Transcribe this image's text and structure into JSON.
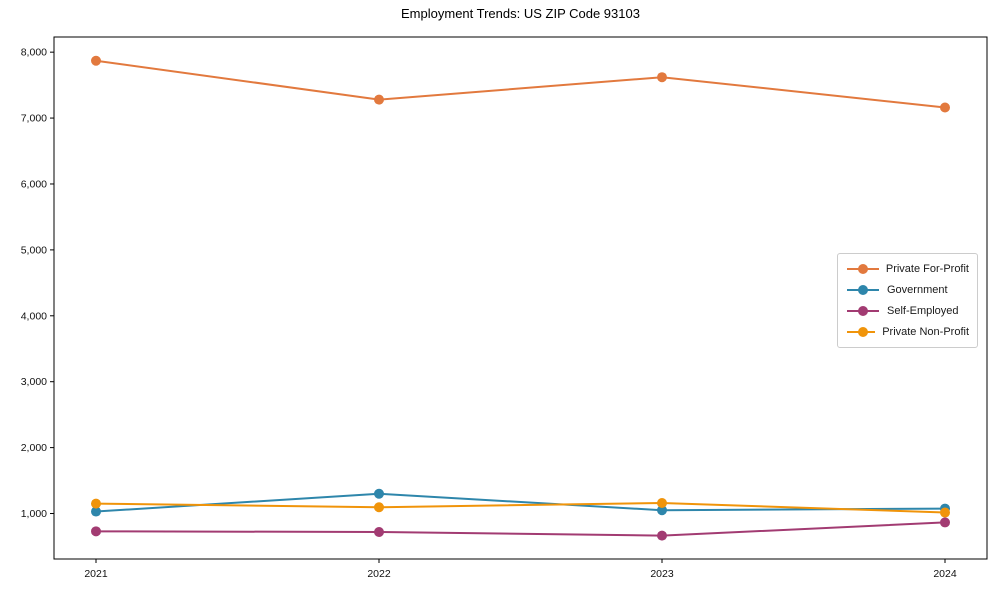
{
  "chart_data": {
    "type": "line",
    "title": "Employment Trends: US ZIP Code 93103",
    "xlabel": "",
    "ylabel": "",
    "categories": [
      "2021",
      "2022",
      "2023",
      "2024"
    ],
    "series": [
      {
        "name": "Private For-Profit",
        "color": "#E2793E",
        "values": [
          7870,
          7280,
          7620,
          7160
        ]
      },
      {
        "name": "Government",
        "color": "#2E86AB",
        "values": [
          1030,
          1300,
          1050,
          1075
        ]
      },
      {
        "name": "Self-Employed",
        "color": "#A23B72",
        "values": [
          730,
          720,
          665,
          865
        ]
      },
      {
        "name": "Private Non-Profit",
        "color": "#F0940A",
        "values": [
          1150,
          1095,
          1160,
          1015
        ]
      }
    ],
    "yticks": [
      {
        "value": 1000,
        "label": "1,000"
      },
      {
        "value": 2000,
        "label": "2,000"
      },
      {
        "value": 3000,
        "label": "3,000"
      },
      {
        "value": 4000,
        "label": "4,000"
      },
      {
        "value": 5000,
        "label": "5,000"
      },
      {
        "value": 6000,
        "label": "6,000"
      },
      {
        "value": 7000,
        "label": "7,000"
      },
      {
        "value": 8000,
        "label": "8,000"
      }
    ],
    "ylim": [
      310,
      8230
    ],
    "grid": false,
    "legend_position": "center-right",
    "marker": "circle",
    "background": "#ffffff",
    "frame_color": "#000000"
  }
}
